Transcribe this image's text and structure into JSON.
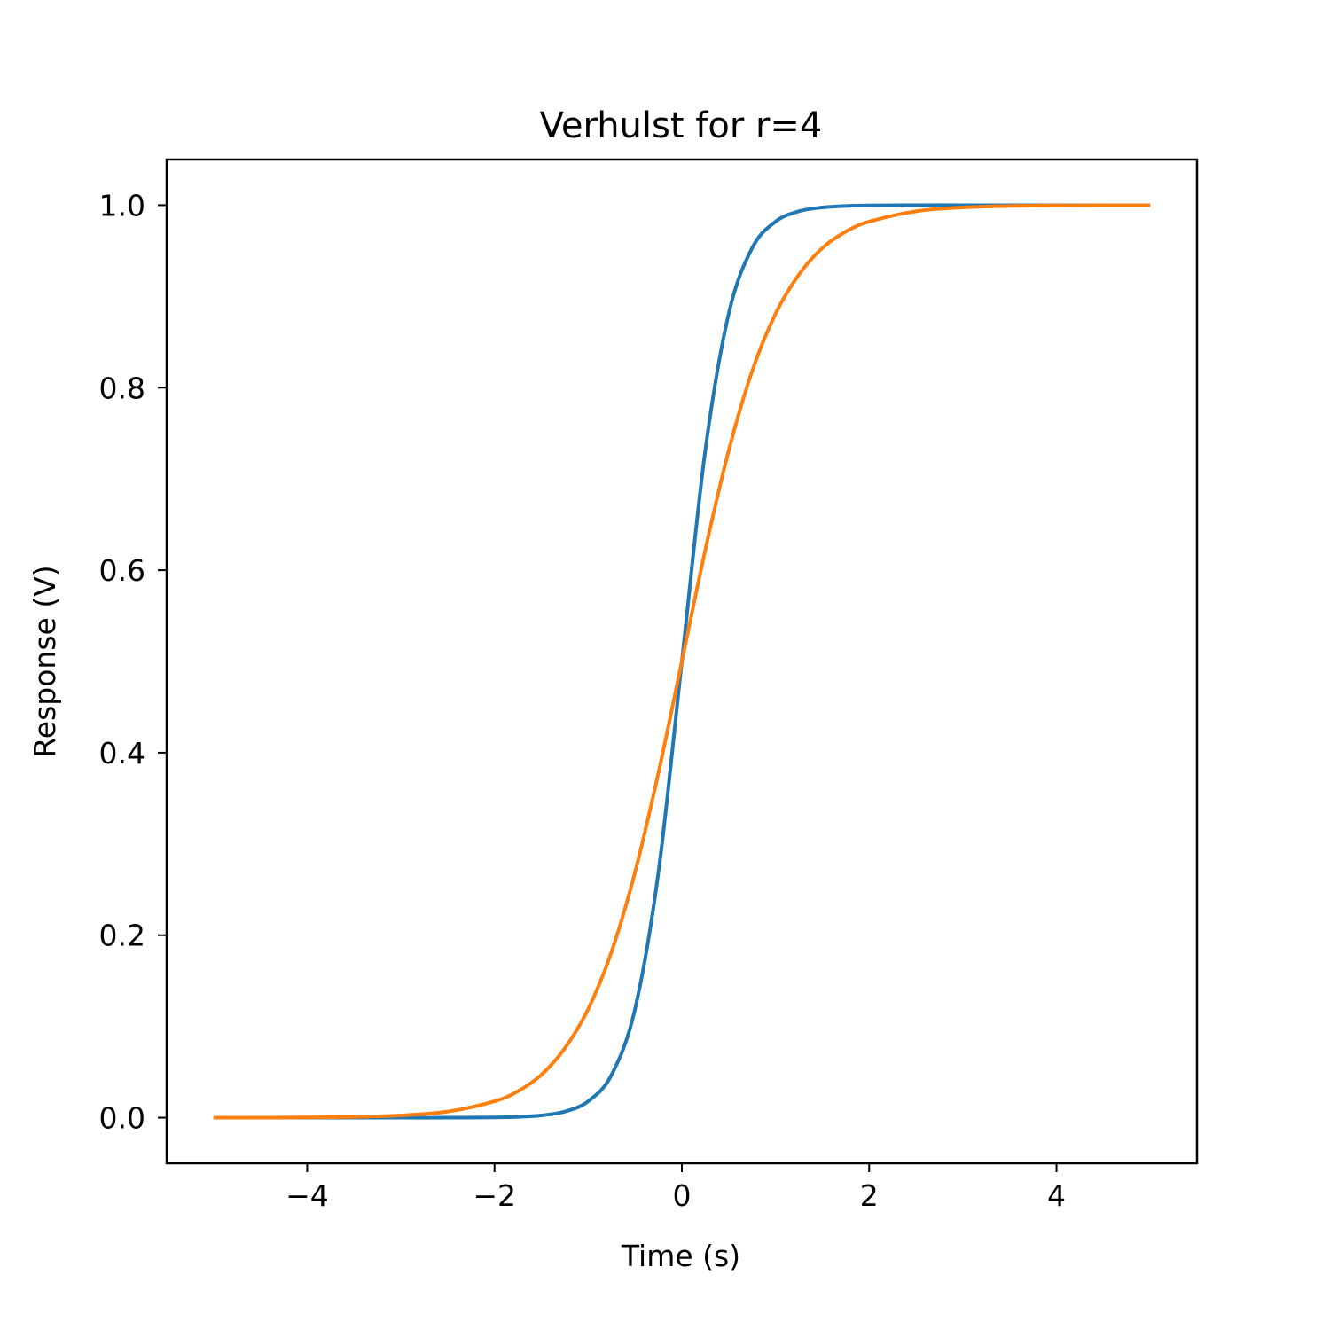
{
  "chart_data": {
    "type": "line",
    "title": "Verhulst for r=4",
    "xlabel": "Time (s)",
    "ylabel": "Response (V)",
    "xlim": [
      -5.5,
      5.5
    ],
    "ylim": [
      -0.05,
      1.05
    ],
    "x_ticks": [
      -4,
      -2,
      0,
      2,
      4
    ],
    "x_tick_labels": [
      "−4",
      "−2",
      "0",
      "2",
      "4"
    ],
    "y_ticks": [
      0.0,
      0.2,
      0.4,
      0.6,
      0.8,
      1.0
    ],
    "y_tick_labels": [
      "0.0",
      "0.2",
      "0.4",
      "0.6",
      "0.8",
      "1.0"
    ],
    "grid": false,
    "legend": "none",
    "x": [
      -5.0,
      -4.5,
      -4.0,
      -3.5,
      -3.0,
      -2.5,
      -2.0,
      -1.75,
      -1.5,
      -1.25,
      -1.0,
      -0.75,
      -0.5,
      -0.25,
      0.0,
      0.25,
      0.5,
      0.75,
      1.0,
      1.25,
      1.5,
      1.75,
      2.0,
      2.5,
      3.0,
      3.5,
      4.0,
      4.5,
      5.0
    ],
    "series": [
      {
        "color": "#1f77b4",
        "values": [
          0.0,
          0.0,
          0.0,
          0.0,
          0.0,
          0.0,
          0.0003,
          0.0009,
          0.0025,
          0.0067,
          0.018,
          0.047,
          0.119,
          0.269,
          0.5,
          0.731,
          0.881,
          0.953,
          0.982,
          0.9933,
          0.9975,
          0.9991,
          0.9997,
          1.0,
          1.0,
          1.0,
          1.0,
          1.0,
          1.0
        ]
      },
      {
        "color": "#ff7f0e",
        "values": [
          0.0001,
          0.0001,
          0.0003,
          0.0009,
          0.0025,
          0.0067,
          0.018,
          0.029,
          0.047,
          0.076,
          0.119,
          0.182,
          0.269,
          0.378,
          0.5,
          0.622,
          0.731,
          0.818,
          0.881,
          0.924,
          0.953,
          0.971,
          0.982,
          0.9933,
          0.9975,
          0.9991,
          0.9997,
          0.9999,
          0.9999
        ]
      }
    ]
  }
}
